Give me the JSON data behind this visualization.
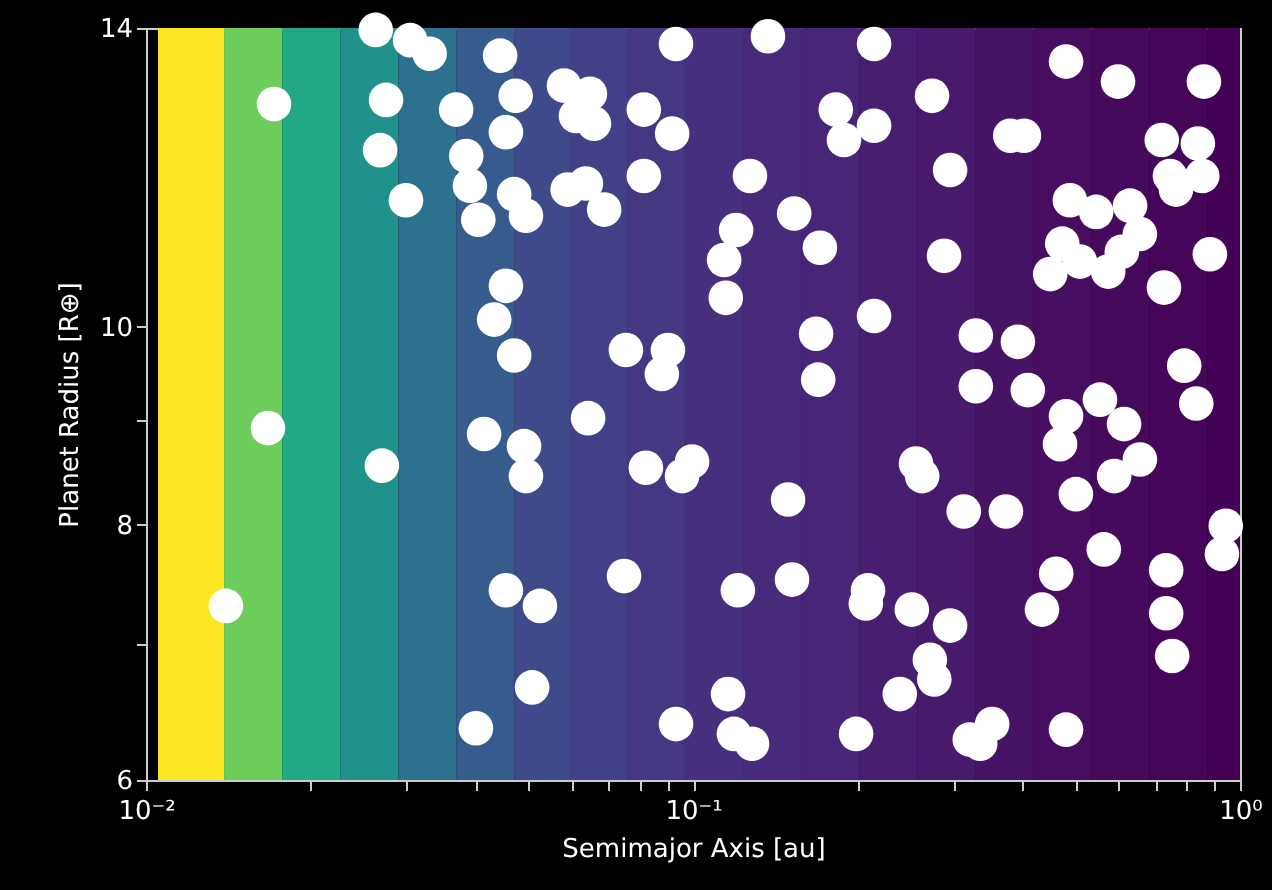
{
  "chart_data": {
    "type": "scatter",
    "xlabel": "Semimajor Axis [au]",
    "ylabel": "Planet Radius [R⊕]",
    "log": "xy",
    "xlim": [
      0.01,
      1
    ],
    "ylim": [
      6,
      14
    ],
    "xticks": [
      {
        "value": 0.01,
        "label": "10⁻²"
      },
      {
        "value": 0.02,
        "label": null
      },
      {
        "value": 0.03,
        "label": null
      },
      {
        "value": 0.04,
        "label": null
      },
      {
        "value": 0.05,
        "label": null
      },
      {
        "value": 0.06,
        "label": null
      },
      {
        "value": 0.07,
        "label": null
      },
      {
        "value": 0.08,
        "label": null
      },
      {
        "value": 0.09,
        "label": null
      },
      {
        "value": 0.1,
        "label": "10⁻¹"
      },
      {
        "value": 0.2,
        "label": null
      },
      {
        "value": 0.3,
        "label": null
      },
      {
        "value": 0.4,
        "label": null
      },
      {
        "value": 0.5,
        "label": null
      },
      {
        "value": 0.6,
        "label": null
      },
      {
        "value": 0.7,
        "label": null
      },
      {
        "value": 0.8,
        "label": null
      },
      {
        "value": 0.9,
        "label": null
      },
      {
        "value": 1,
        "label": "10⁰"
      }
    ],
    "yticks": [
      6,
      {
        "value": 7,
        "label": null
      },
      8,
      {
        "value": 9,
        "label": null
      },
      10,
      14
    ],
    "grid": false,
    "marker": "circle",
    "bands": [
      {
        "axis": "x",
        "from": 0.01052,
        "to": 0.01389,
        "color": "#fde725"
      },
      {
        "axis": "x",
        "from": 0.01389,
        "to": 0.01774,
        "color": "#6ccd5a"
      },
      {
        "axis": "x",
        "from": 0.01774,
        "to": 0.02265,
        "color": "#22a884"
      },
      {
        "axis": "x",
        "from": 0.02265,
        "to": 0.02891,
        "color": "#21918c"
      },
      {
        "axis": "x",
        "from": 0.02891,
        "to": 0.0369,
        "color": "#2c718e"
      },
      {
        "axis": "x",
        "from": 0.0369,
        "to": 0.0471,
        "color": "#365c8d"
      },
      {
        "axis": "x",
        "from": 0.0471,
        "to": 0.05957,
        "color": "#3e4a89"
      },
      {
        "axis": "x",
        "from": 0.05957,
        "to": 0.07603,
        "color": "#424086"
      },
      {
        "axis": "x",
        "from": 0.07603,
        "to": 0.09705,
        "color": "#453781"
      },
      {
        "axis": "x",
        "from": 0.09705,
        "to": 0.1239,
        "color": "#46307e"
      },
      {
        "axis": "x",
        "from": 0.1239,
        "to": 0.1581,
        "color": "#472a7a"
      },
      {
        "axis": "x",
        "from": 0.1581,
        "to": 0.2018,
        "color": "#482576"
      },
      {
        "axis": "x",
        "from": 0.2018,
        "to": 0.2576,
        "color": "#481f70"
      },
      {
        "axis": "x",
        "from": 0.2576,
        "to": 0.3288,
        "color": "#481a6c"
      },
      {
        "axis": "x",
        "from": 0.3288,
        "to": 0.4197,
        "color": "#471365"
      },
      {
        "axis": "x",
        "from": 0.4197,
        "to": 0.5358,
        "color": "#470d60"
      },
      {
        "axis": "x",
        "from": 0.5358,
        "to": 0.6839,
        "color": "#460a5d"
      },
      {
        "axis": "x",
        "from": 0.6839,
        "to": 0.873,
        "color": "#45065a"
      },
      {
        "axis": "x",
        "from": 0.873,
        "to": 1,
        "color": "#440256"
      }
    ],
    "series": [
      {
        "color": "#ffffff",
        "x": [
          0.01714,
          0.01671,
          0.014,
          0.02747,
          0.02679,
          0.02987,
          0.02699,
          0.0263,
          0.0304,
          0.033,
          0.0369,
          0.0444,
          0.0385,
          0.0391,
          0.0405,
          0.0455,
          0.0474,
          0.0471,
          0.0495,
          0.0455,
          0.0433,
          0.0471,
          0.0415,
          0.0491,
          0.0495,
          0.0455,
          0.0525,
          0.0508,
          0.0401,
          0.0581,
          0.0648,
          0.0611,
          0.0659,
          0.059,
          0.0637,
          0.0688,
          0.0813,
          0.0813,
          0.0916,
          0.0754,
          0.0643,
          0.09,
          0.0877,
          0.0996,
          0.0955,
          0.082,
          0.0748,
          0.1159,
          0.1188,
          0.1282,
          0.0931,
          0.1199,
          0.114,
          0.1148,
          0.1271,
          0.1371,
          0.0931,
          0.1531,
          0.1706,
          0.1679,
          0.1694,
          0.1492,
          0.1208,
          0.1517,
          0.2143,
          0.2143,
          0.1824,
          0.1888,
          0.2143,
          0.2089,
          0.207,
          0.1987,
          0.2735,
          0.2951,
          0.3289,
          0.3289,
          0.2557,
          0.2624,
          0.3802,
          0.4027,
          0.3126,
          0.3733,
          0.2512,
          0.2951,
          0.271,
          0.2761,
          0.2388,
          0.3206,
          0.3523,
          0.335,
          0.4808,
          0.4808,
          0.4732,
          0.3926,
          0.4093,
          0.2877,
          0.4887,
          0.5458,
          0.6295,
          0.6561,
          0.6081,
          0.5098,
          0.4498,
          0.5741,
          0.7261,
          0.881,
          0.8531,
          0.8375,
          0.7194,
          0.859,
          0.7447,
          0.7638,
          0.5984,
          0.4808,
          0.5546,
          0.6138,
          0.6561,
          0.5888,
          0.5012,
          0.4688,
          0.7907,
          0.8318,
          0.9268,
          0.9419,
          0.5636,
          0.4613,
          0.4345,
          0.7328,
          0.7328,
          0.7516
        ],
        "values": [
          12.85,
          8.92,
          7.3,
          12.91,
          12.2,
          11.53,
          8.55,
          13.97,
          13.81,
          13.6,
          12.77,
          13.57,
          12.12,
          11.72,
          11.28,
          12.45,
          12.97,
          11.61,
          11.33,
          10.47,
          10.08,
          9.68,
          8.86,
          8.74,
          8.45,
          7.43,
          7.3,
          6.66,
          6.36,
          13.12,
          13.0,
          12.68,
          12.57,
          11.67,
          11.75,
          11.41,
          12.77,
          11.85,
          12.43,
          9.74,
          9.02,
          9.74,
          9.48,
          8.59,
          8.45,
          8.53,
          7.55,
          6.61,
          6.32,
          6.25,
          6.39,
          11.15,
          10.78,
          10.33,
          11.85,
          13.87,
          13.75,
          11.36,
          10.93,
          9.92,
          9.42,
          8.23,
          7.43,
          7.52,
          13.75,
          12.54,
          12.77,
          12.34,
          10.12,
          7.43,
          7.32,
          6.32,
          12.97,
          11.93,
          9.9,
          9.35,
          8.57,
          8.45,
          12.4,
          12.4,
          8.12,
          8.12,
          7.27,
          7.14,
          6.87,
          6.72,
          6.61,
          6.28,
          6.39,
          6.25,
          6.35,
          13.48,
          10.98,
          9.83,
          9.31,
          10.83,
          11.53,
          11.38,
          11.46,
          11.1,
          10.88,
          10.76,
          10.61,
          10.64,
          10.45,
          10.85,
          11.85,
          12.29,
          12.34,
          13.18,
          11.85,
          11.67,
          13.18,
          9.04,
          9.21,
          8.96,
          8.61,
          8.45,
          8.28,
          8.76,
          9.57,
          9.17,
          7.74,
          7.99,
          7.78,
          7.57,
          7.27,
          7.6,
          7.24,
          6.9
        ]
      }
    ]
  }
}
